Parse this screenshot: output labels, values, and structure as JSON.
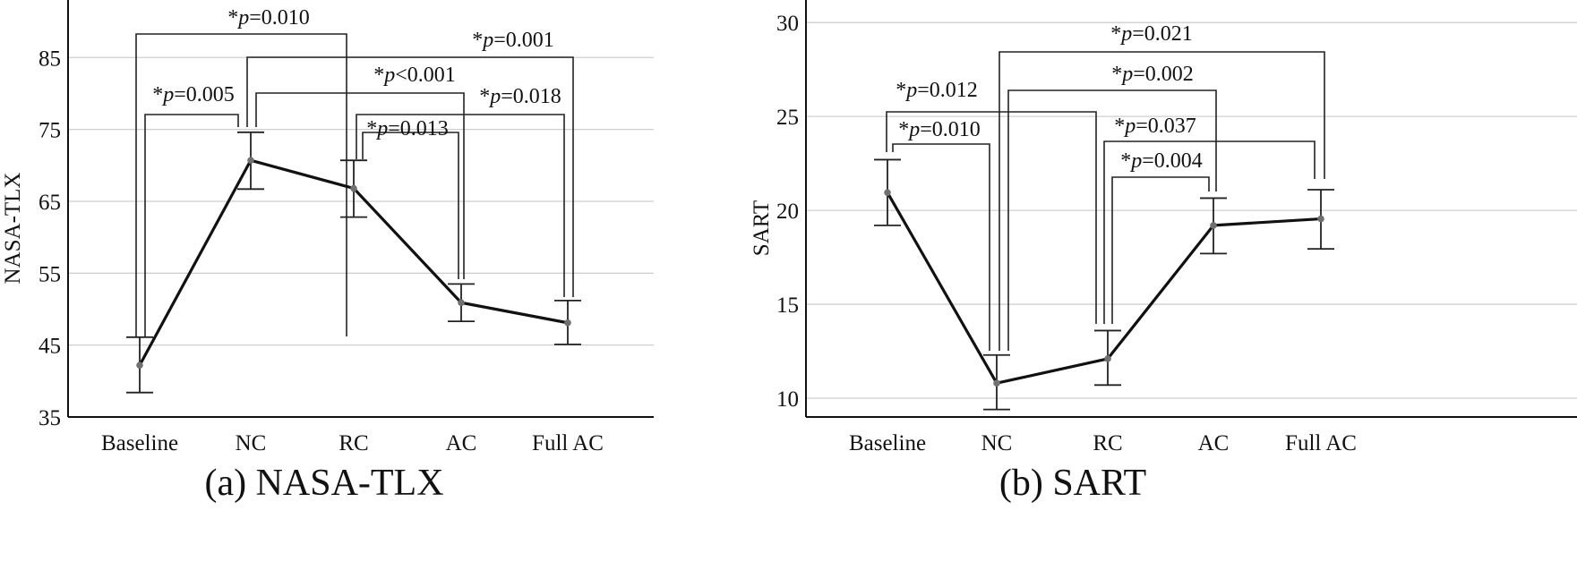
{
  "chart_data": [
    {
      "type": "line",
      "title": "(a) NASA-TLX",
      "ylabel": "NASA-TLX",
      "xlabel": "",
      "categories": [
        "Baseline",
        "NC",
        "RC",
        "AC",
        "Full AC"
      ],
      "y_ticks": [
        35,
        45,
        55,
        65,
        75,
        85
      ],
      "ylim": [
        35,
        93
      ],
      "grid": true,
      "series": [
        {
          "values": [
            42.2,
            70.7,
            66.8,
            50.9,
            48.1
          ],
          "error_low": [
            38.4,
            66.7,
            62.8,
            48.3,
            45.1
          ],
          "error_high": [
            46.1,
            74.6,
            70.7,
            53.5,
            51.2
          ]
        }
      ],
      "annotations": [
        {
          "from": "Baseline",
          "to": "RC",
          "prefix": "*",
          "var": "p",
          "op": "=",
          "val": "0.010"
        },
        {
          "from": "Baseline",
          "to": "NC",
          "prefix": "*",
          "var": "p",
          "op": "=",
          "val": "0.005"
        },
        {
          "from": "NC",
          "to": "Full AC",
          "prefix": "*",
          "var": "p",
          "op": "=",
          "val": "0.001"
        },
        {
          "from": "NC",
          "to": "AC",
          "prefix": "*",
          "var": "p",
          "op": "<",
          "val": "0.001"
        },
        {
          "from": "RC",
          "to": "Full AC",
          "prefix": "*",
          "var": "p",
          "op": "=",
          "val": "0.018"
        },
        {
          "from": "RC",
          "to": "AC",
          "prefix": "*",
          "var": "p",
          "op": "=",
          "val": "0.013"
        }
      ]
    },
    {
      "type": "line",
      "title": "(b) SART",
      "ylabel": "SART",
      "xlabel": "",
      "categories": [
        "Baseline",
        "NC",
        "RC",
        "AC",
        "Full AC"
      ],
      "y_ticks": [
        10,
        15,
        20,
        25,
        30
      ],
      "ylim": [
        9,
        31.2
      ],
      "grid": true,
      "series": [
        {
          "values": [
            20.95,
            10.8,
            12.1,
            19.2,
            19.55
          ],
          "error_low": [
            19.2,
            9.4,
            10.7,
            17.7,
            17.95
          ],
          "error_high": [
            22.7,
            12.3,
            13.6,
            20.65,
            21.1
          ]
        }
      ],
      "annotations": [
        {
          "from": "NC",
          "to": "Full AC",
          "prefix": "*",
          "var": "p",
          "op": "=",
          "val": "0.021"
        },
        {
          "from": "NC",
          "to": "AC",
          "prefix": "*",
          "var": "p",
          "op": "=",
          "val": "0.002"
        },
        {
          "from": "Baseline",
          "to": "RC",
          "prefix": "*",
          "var": "p",
          "op": "=",
          "val": "0.012"
        },
        {
          "from": "RC",
          "to": "Full AC",
          "prefix": "*",
          "var": "p",
          "op": "=",
          "val": "0.037"
        },
        {
          "from": "Baseline",
          "to": "NC",
          "prefix": "*",
          "var": "p",
          "op": "=",
          "val": "0.010"
        },
        {
          "from": "RC",
          "to": "AC",
          "prefix": "*",
          "var": "p",
          "op": "=",
          "val": "0.004"
        }
      ]
    }
  ]
}
